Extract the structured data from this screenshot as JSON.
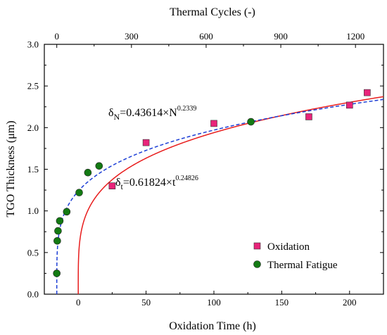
{
  "chart_data": {
    "type": "scatter",
    "xlabel": "Oxidation Time (h)",
    "x2label": "Thermal Cycles (-)",
    "ylabel": "TGO Thickness (μm)",
    "xlim": [
      -25,
      225
    ],
    "x2lim": [
      -50,
      1312.5
    ],
    "ylim": [
      0.0,
      3.0
    ],
    "xticks": [
      "0",
      "50",
      "100",
      "150",
      "200"
    ],
    "x2ticks": [
      "0",
      "300",
      "600",
      "900",
      "1200"
    ],
    "yticks": [
      "0.0",
      "0.5",
      "1.0",
      "1.5",
      "2.0",
      "2.5",
      "3.0"
    ],
    "series": [
      {
        "name": "Oxidation",
        "marker": "square",
        "color": "#e8247a",
        "axis": "bottom",
        "points": [
          [
            25,
            1.3
          ],
          [
            50,
            1.82
          ],
          [
            100,
            2.05
          ],
          [
            170,
            2.13
          ],
          [
            200,
            2.27
          ],
          [
            213,
            2.42
          ]
        ]
      },
      {
        "name": "Thermal Fatigue",
        "marker": "circle",
        "color": "#137a13",
        "axis": "top",
        "points": [
          [
            0,
            0.25
          ],
          [
            2,
            0.64
          ],
          [
            5,
            0.76
          ],
          [
            12,
            0.88
          ],
          [
            40,
            0.99
          ],
          [
            90,
            1.22
          ],
          [
            125,
            1.46
          ],
          [
            170,
            1.54
          ],
          [
            780,
            2.07
          ]
        ]
      }
    ],
    "fits": [
      {
        "label_base": "δ",
        "label_sub": "t",
        "label_rest": "=0.61824×t",
        "label_sup": "0.24826",
        "coef": 0.61824,
        "exponent": 0.24826,
        "axis": "bottom",
        "color": "#e81c1c",
        "dash": "solid"
      },
      {
        "label_base": "δ",
        "label_sub": "N",
        "label_rest": "=0.43614×N",
        "label_sup": "0.2339",
        "coef": 0.43614,
        "exponent": 0.2339,
        "axis": "top",
        "color": "#1d3fd6",
        "dash": "dashed"
      }
    ],
    "grid": false,
    "legend_position": "bottom-right"
  }
}
